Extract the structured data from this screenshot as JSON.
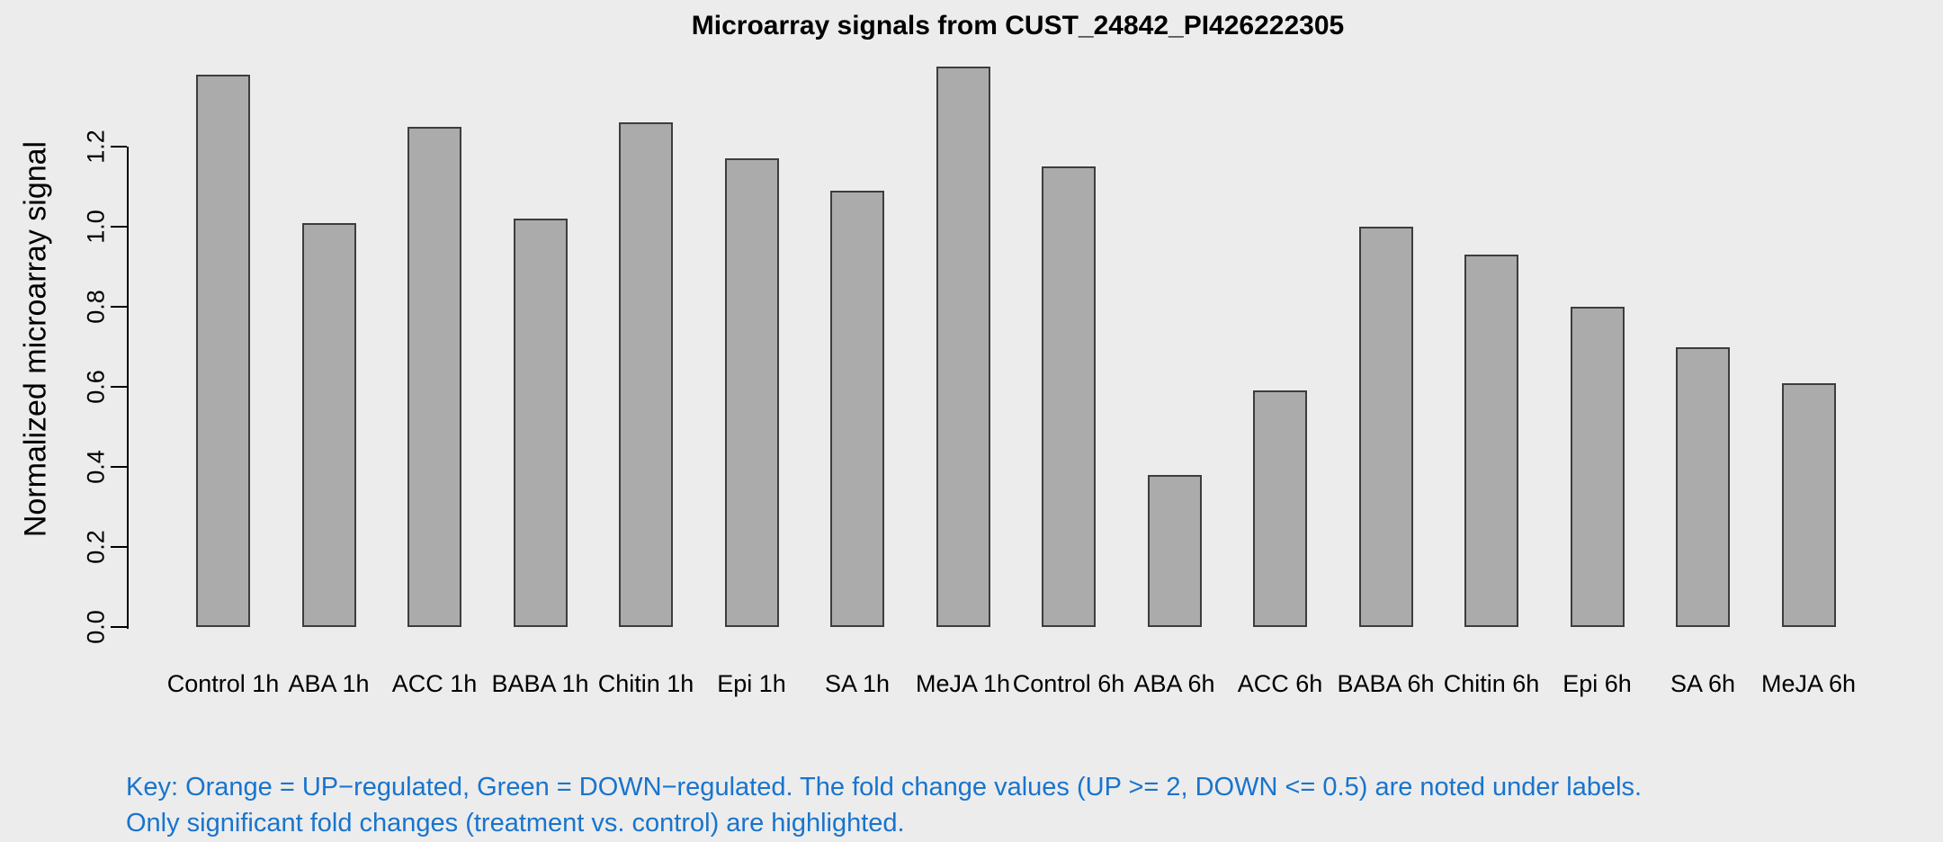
{
  "chart_data": {
    "type": "bar",
    "title": "Microarray signals from CUST_24842_PI426222305",
    "xlabel": "",
    "ylabel": "Normalized microarray signal",
    "categories": [
      "Control 1h",
      "ABA 1h",
      "ACC 1h",
      "BABA 1h",
      "Chitin 1h",
      "Epi 1h",
      "SA 1h",
      "MeJA 1h",
      "Control 6h",
      "ABA 6h",
      "ACC 6h",
      "BABA 6h",
      "Chitin 6h",
      "Epi 6h",
      "SA 6h",
      "MeJA 6h"
    ],
    "values": [
      1.38,
      1.01,
      1.25,
      1.02,
      1.26,
      1.17,
      1.09,
      1.4,
      1.15,
      0.38,
      0.59,
      1.0,
      0.93,
      0.8,
      0.7,
      0.61
    ],
    "yticks": [
      0.0,
      0.2,
      0.4,
      0.6,
      0.8,
      1.0,
      1.2
    ],
    "ylim": [
      0,
      1.4
    ],
    "grid": false,
    "legend": "none",
    "bar_color": "#ABABAB",
    "bar_border_color": "#3D3D3D",
    "background_color": "#ECECEC",
    "axis_color": "#000000"
  },
  "key": {
    "line1": "Key: Orange = UP−regulated, Green = DOWN−regulated. The fold change values (UP >= 2, DOWN <= 0.5) are noted under labels.",
    "line2": "Only significant fold changes (treatment vs. control) are highlighted.",
    "color": "#1874CD"
  }
}
